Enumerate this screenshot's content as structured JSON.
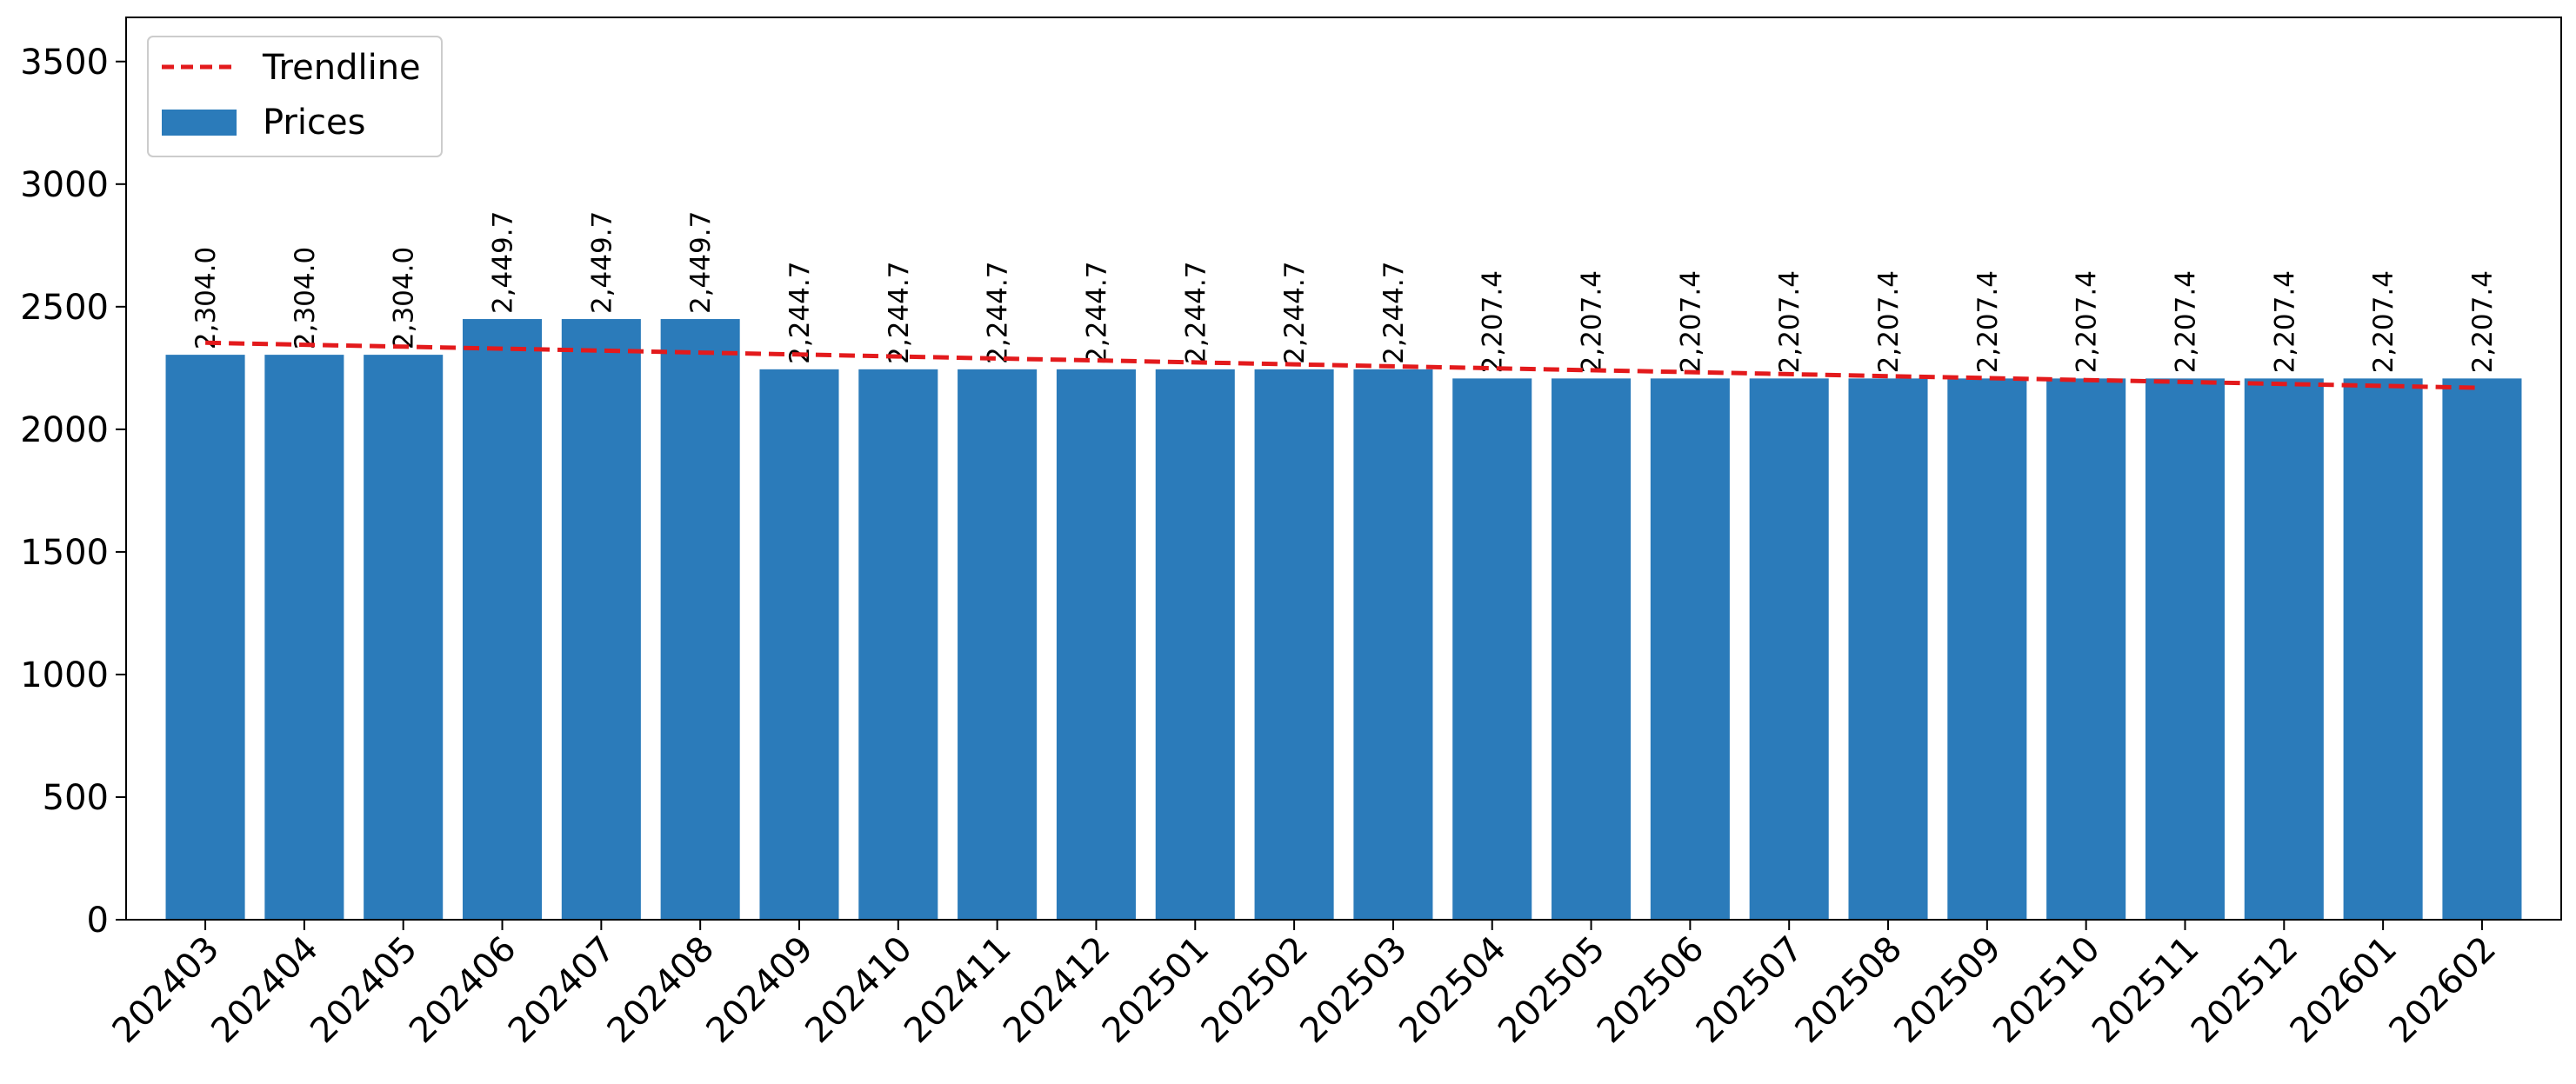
{
  "chart_data": {
    "type": "bar",
    "categories": [
      "202403",
      "202404",
      "202405",
      "202406",
      "202407",
      "202408",
      "202409",
      "202410",
      "202411",
      "202412",
      "202501",
      "202502",
      "202503",
      "202504",
      "202505",
      "202506",
      "202507",
      "202508",
      "202509",
      "202510",
      "202511",
      "202512",
      "202601",
      "202602"
    ],
    "series": [
      {
        "name": "Prices",
        "values": [
          2304.0,
          2304.0,
          2304.0,
          2449.7,
          2449.7,
          2449.7,
          2244.7,
          2244.7,
          2244.7,
          2244.7,
          2244.7,
          2244.7,
          2244.7,
          2207.4,
          2207.4,
          2207.4,
          2207.4,
          2207.4,
          2207.4,
          2207.4,
          2207.4,
          2207.4,
          2207.4,
          2207.4
        ],
        "color": "#2b7bba"
      },
      {
        "name": "Trendline",
        "type": "line",
        "style": "dashed",
        "values": [
          2353,
          2345,
          2337,
          2329,
          2321,
          2313,
          2305,
          2297,
          2289,
          2281,
          2273,
          2265,
          2257,
          2249,
          2241,
          2233,
          2225,
          2217,
          2209,
          2201,
          2193,
          2185,
          2177,
          2169
        ],
        "color": "#e31a1c"
      }
    ],
    "data_labels": [
      "2,304.0",
      "2,304.0",
      "2,304.0",
      "2,449.7",
      "2,449.7",
      "2,449.7",
      "2,244.7",
      "2,244.7",
      "2,244.7",
      "2,244.7",
      "2,244.7",
      "2,244.7",
      "2,244.7",
      "2,207.4",
      "2,207.4",
      "2,207.4",
      "2,207.4",
      "2,207.4",
      "2,207.4",
      "2,207.4",
      "2,207.4",
      "2,207.4",
      "2,207.4",
      "2,207.4"
    ],
    "yticks": [
      "0",
      "500",
      "1000",
      "1500",
      "2000",
      "2500",
      "3000",
      "3500"
    ],
    "ylim": [
      0,
      3680
    ],
    "title": "",
    "xlabel": "",
    "ylabel": "",
    "grid": false,
    "legend": {
      "placement": "top-left",
      "entries": [
        "Trendline",
        "Prices"
      ]
    }
  }
}
